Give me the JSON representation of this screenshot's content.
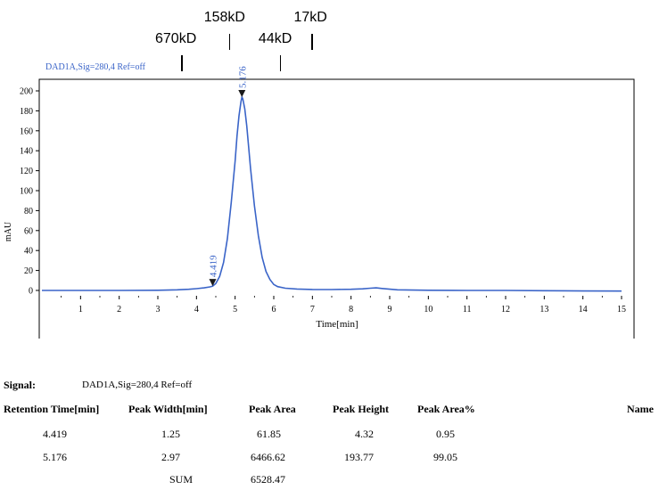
{
  "markers": [
    {
      "label": "670kD",
      "time": 3.6
    },
    {
      "label": "158kD",
      "time": 4.84
    },
    {
      "label": "44kD",
      "time": 6.16
    },
    {
      "label": "17kD",
      "time": 6.98
    }
  ],
  "chart_data": {
    "type": "line",
    "signal_title": "DAD1A,Sig=280,4  Ref=off",
    "xlabel": "Time[min]",
    "ylabel": "mAU",
    "xlim": [
      0,
      15
    ],
    "ylim": [
      0,
      200
    ],
    "xticks": [
      1,
      2,
      3,
      4,
      5,
      6,
      7,
      8,
      9,
      10,
      11,
      12,
      13,
      14,
      15
    ],
    "yticks": [
      0,
      20,
      40,
      60,
      80,
      100,
      120,
      140,
      160,
      180,
      200
    ],
    "color": "#3a64c8",
    "series": [
      {
        "x": [
          0,
          1,
          2,
          3,
          3.5,
          3.8,
          4.0,
          4.2,
          4.35,
          4.419,
          4.5,
          4.6,
          4.7,
          4.8,
          4.9,
          5.0,
          5.05,
          5.1,
          5.15,
          5.176,
          5.2,
          5.25,
          5.3,
          5.35,
          5.4,
          5.5,
          5.6,
          5.7,
          5.8,
          5.9,
          6.0,
          6.1,
          6.3,
          6.6,
          7,
          7.5,
          8,
          8.3,
          8.5,
          8.65,
          8.8,
          9.2,
          10,
          11,
          12,
          13,
          14,
          15
        ],
        "y": [
          0,
          0,
          0,
          0.2,
          0.6,
          1.2,
          1.8,
          2.6,
          3.6,
          4.32,
          7,
          14,
          28,
          52,
          88,
          130,
          155,
          175,
          189,
          193.77,
          192,
          182,
          165,
          144,
          122,
          85,
          55,
          33,
          19,
          11,
          6,
          3.8,
          2.2,
          1.4,
          1,
          0.9,
          1.2,
          1.6,
          2.2,
          2.6,
          2.0,
          0.6,
          0.2,
          0,
          0,
          -0.3,
          -0.5,
          -0.6
        ]
      }
    ],
    "peak_labels": [
      {
        "time": 4.419,
        "label": "4.419",
        "value": 4.32
      },
      {
        "time": 5.176,
        "label": "5.176",
        "value": 193.77
      }
    ]
  },
  "table": {
    "signal_label": "Signal:",
    "signal_value": "DAD1A,Sig=280,4  Ref=off",
    "headers": [
      "Retention Time[min]",
      "Peak Width[min]",
      "Peak Area",
      "Peak Height",
      "Peak Area%",
      "Name"
    ],
    "rows": [
      [
        "4.419",
        "1.25",
        "61.85",
        "4.32",
        "0.95"
      ],
      [
        "5.176",
        "2.97",
        "6466.62",
        "193.77",
        "99.05"
      ]
    ],
    "sum_label": "SUM",
    "sum_value": "6528.47"
  }
}
